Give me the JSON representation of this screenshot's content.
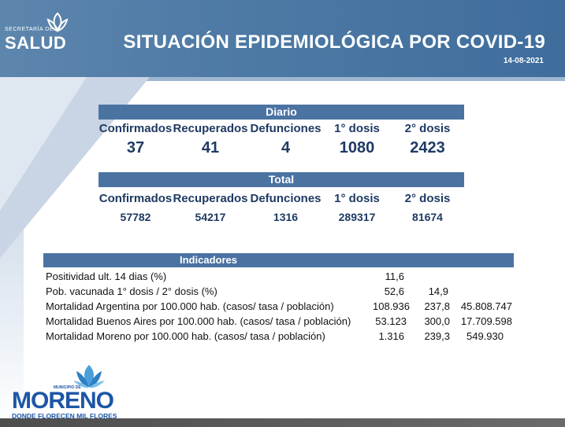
{
  "header": {
    "logo_small": "SECRETARÍA DE",
    "logo_big": "SALUD",
    "title": "SITUACIÓN EPIDEMIOLÓGICA POR COVID-19",
    "date": "14-08-2021"
  },
  "diario": {
    "label": "Diario",
    "columns": [
      "Confirmados",
      "Recuperados",
      "Defunciones",
      "1° dosis",
      "2° dosis"
    ],
    "values": [
      "37",
      "41",
      "4",
      "1080",
      "2423"
    ]
  },
  "total": {
    "label": "Total",
    "columns": [
      "Confirmados",
      "Recuperados",
      "Defunciones",
      "1° dosis",
      "2° dosis"
    ],
    "values": [
      "57782",
      "54217",
      "1316",
      "289317",
      "81674"
    ]
  },
  "indicadores": {
    "label": "Indicadores",
    "rows": [
      {
        "label": "Positividad ult. 14 dias (%)",
        "v1": "11,6",
        "v2": "",
        "v3": ""
      },
      {
        "label": "Pob. vacunada 1° dosis / 2° dosis (%)",
        "v1": "52,6",
        "v2": "14,9",
        "v3": ""
      },
      {
        "label": "Mortalidad Argentina por 100.000 hab. (casos/ tasa / población)",
        "v1": "108.936",
        "v2": "237,8",
        "v3": "45.808.747"
      },
      {
        "label": "Mortalidad Buenos Aires por 100.000 hab. (casos/ tasa / población)",
        "v1": "53.123",
        "v2": "300,0",
        "v3": "17.709.598"
      },
      {
        "label": "Mortalidad Moreno por 100.000 hab. (casos/ tasa / población)",
        "v1": "1.316",
        "v2": "239,3",
        "v3": "549.930"
      }
    ]
  },
  "footer": {
    "muni": "MUNICIPIO DE",
    "name": "MORENO",
    "tagline": "DONDE FLORECEN MIL FLORES"
  },
  "colors": {
    "header_blue": "#4f7ba6",
    "band_blue": "#4b73a2",
    "text_navy": "#1f3a63",
    "logo_blue": "#1d56a6"
  }
}
